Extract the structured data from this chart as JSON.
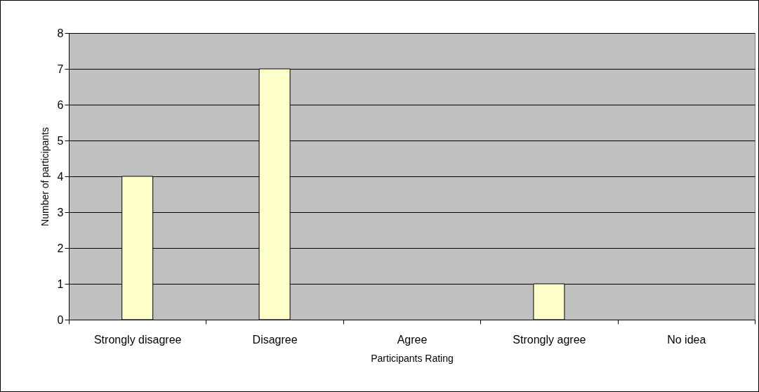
{
  "chart_data": {
    "type": "bar",
    "xlabel": "Participants Rating",
    "ylabel": "Number of participants",
    "categories": [
      "Strongly disagree",
      "Disagree",
      "Agree",
      "Strongly agree",
      "No idea"
    ],
    "values": [
      4,
      7,
      0,
      1,
      0
    ],
    "color": "#ffffcc",
    "ylim": [
      0,
      8
    ],
    "yticks": [
      0,
      1,
      2,
      3,
      4,
      5,
      6,
      7,
      8
    ],
    "grid": "y"
  }
}
